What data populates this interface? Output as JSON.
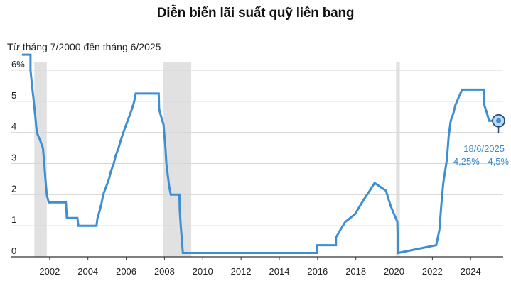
{
  "chart_data": {
    "type": "line",
    "title": "Diễn biến lãi suất quỹ liên bang",
    "subtitle": "Từ tháng 7/2000 đến tháng 6/2025",
    "ylim": [
      0,
      6.5
    ],
    "y_ticks": [
      {
        "value": 0,
        "label": "0"
      },
      {
        "value": 1,
        "label": "1"
      },
      {
        "value": 2,
        "label": "2"
      },
      {
        "value": 3,
        "label": "3"
      },
      {
        "value": 4,
        "label": "4"
      },
      {
        "value": 5,
        "label": "5"
      },
      {
        "value": 6,
        "label": "6%"
      }
    ],
    "xlim": [
      2000.0,
      2025.7
    ],
    "x_ticks": [
      2002,
      2004,
      2006,
      2008,
      2010,
      2012,
      2014,
      2016,
      2018,
      2020,
      2022,
      2024
    ],
    "grid": true,
    "recessions": [
      {
        "start": 2001.2,
        "end": 2001.85
      },
      {
        "start": 2007.95,
        "end": 2009.4
      },
      {
        "start": 2020.1,
        "end": 2020.3
      }
    ],
    "series": [
      {
        "color": "#3d8ed2",
        "points": [
          [
            2000.55,
            6.5
          ],
          [
            2001.0,
            6.5
          ],
          [
            2001.0,
            6.0
          ],
          [
            2001.08,
            5.5
          ],
          [
            2001.17,
            5.0
          ],
          [
            2001.25,
            4.5
          ],
          [
            2001.33,
            4.0
          ],
          [
            2001.5,
            3.75
          ],
          [
            2001.65,
            3.5
          ],
          [
            2001.72,
            3.0
          ],
          [
            2001.78,
            2.5
          ],
          [
            2001.85,
            2.0
          ],
          [
            2001.95,
            1.75
          ],
          [
            2002.85,
            1.75
          ],
          [
            2002.9,
            1.25
          ],
          [
            2003.45,
            1.25
          ],
          [
            2003.5,
            1.0
          ],
          [
            2004.45,
            1.0
          ],
          [
            2004.5,
            1.25
          ],
          [
            2004.62,
            1.5
          ],
          [
            2004.72,
            1.75
          ],
          [
            2004.8,
            2.0
          ],
          [
            2004.95,
            2.25
          ],
          [
            2005.1,
            2.5
          ],
          [
            2005.2,
            2.75
          ],
          [
            2005.35,
            3.0
          ],
          [
            2005.45,
            3.25
          ],
          [
            2005.6,
            3.5
          ],
          [
            2005.72,
            3.75
          ],
          [
            2005.85,
            4.0
          ],
          [
            2006.0,
            4.25
          ],
          [
            2006.15,
            4.5
          ],
          [
            2006.3,
            4.75
          ],
          [
            2006.42,
            5.0
          ],
          [
            2006.5,
            5.25
          ],
          [
            2007.7,
            5.25
          ],
          [
            2007.72,
            4.75
          ],
          [
            2007.83,
            4.5
          ],
          [
            2007.95,
            4.25
          ],
          [
            2008.05,
            3.5
          ],
          [
            2008.1,
            3.0
          ],
          [
            2008.25,
            2.25
          ],
          [
            2008.33,
            2.0
          ],
          [
            2008.78,
            2.0
          ],
          [
            2008.8,
            1.5
          ],
          [
            2008.85,
            1.0
          ],
          [
            2008.96,
            0.125
          ],
          [
            2015.96,
            0.125
          ],
          [
            2015.96,
            0.375
          ],
          [
            2016.96,
            0.375
          ],
          [
            2016.96,
            0.625
          ],
          [
            2017.2,
            0.875
          ],
          [
            2017.45,
            1.125
          ],
          [
            2017.96,
            1.375
          ],
          [
            2018.2,
            1.625
          ],
          [
            2018.45,
            1.875
          ],
          [
            2018.72,
            2.125
          ],
          [
            2018.98,
            2.375
          ],
          [
            2019.58,
            2.125
          ],
          [
            2019.7,
            1.875
          ],
          [
            2019.83,
            1.625
          ],
          [
            2020.17,
            1.125
          ],
          [
            2020.21,
            0.125
          ],
          [
            2022.2,
            0.375
          ],
          [
            2022.37,
            0.875
          ],
          [
            2022.46,
            1.625
          ],
          [
            2022.57,
            2.375
          ],
          [
            2022.76,
            3.125
          ],
          [
            2022.85,
            3.875
          ],
          [
            2022.96,
            4.375
          ],
          [
            2023.1,
            4.625
          ],
          [
            2023.2,
            4.875
          ],
          [
            2023.37,
            5.125
          ],
          [
            2023.55,
            5.375
          ],
          [
            2024.7,
            5.375
          ],
          [
            2024.72,
            4.875
          ],
          [
            2024.85,
            4.625
          ],
          [
            2024.96,
            4.375
          ],
          [
            2025.46,
            4.375
          ]
        ]
      }
    ],
    "annotation": {
      "x": 2025.46,
      "y": 4.375,
      "date": "18/6/2025",
      "value": "4,25% - 4,5%"
    }
  }
}
